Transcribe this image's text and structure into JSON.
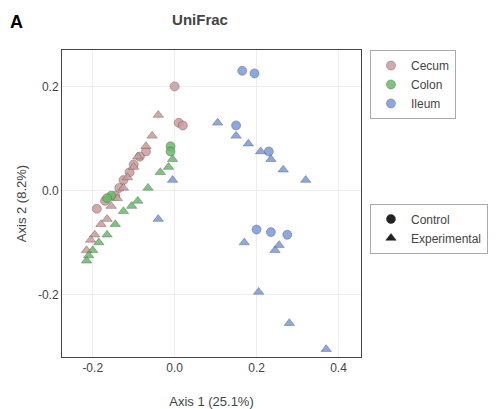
{
  "chart_data": {
    "type": "scatter",
    "title": "UniFrac",
    "xlabel": "Axis 1 (25.1%)",
    "ylabel": "Axis 2 (8.2%)",
    "xlim": [
      -0.275,
      0.455
    ],
    "ylim": [
      -0.32,
      0.27
    ],
    "xticks": [
      -0.2,
      {
        "value": 0.0,
        "label": "0.0"
      },
      0.2,
      0.4
    ],
    "yticks": [
      -0.2,
      {
        "value": 0.0,
        "label": "0.0"
      },
      0.2
    ],
    "grid": true,
    "legend": "right",
    "annotations": [
      {
        "text": "A"
      }
    ],
    "series": [
      {
        "name": "Cecum",
        "color": "#CD9B9B",
        "marker": "circle",
        "x": [
          0.0,
          0.01,
          0.02,
          -0.07,
          -0.085,
          -0.1,
          -0.11,
          -0.125,
          -0.135,
          -0.145,
          -0.17,
          -0.19
        ],
        "values": [
          0.2,
          0.13,
          0.125,
          0.075,
          0.065,
          0.05,
          0.035,
          0.02,
          0.005,
          -0.01,
          -0.02,
          -0.035
        ]
      },
      {
        "name": "Cecum",
        "color": "#CD9B9B",
        "marker": "triangle",
        "x": [
          -0.04,
          -0.055,
          -0.07,
          -0.09,
          -0.1,
          -0.115,
          -0.125,
          -0.14,
          -0.155,
          -0.165,
          -0.18,
          -0.195,
          -0.205,
          -0.215
        ],
        "values": [
          0.145,
          0.105,
          0.085,
          0.065,
          0.045,
          0.025,
          0.005,
          -0.015,
          -0.03,
          -0.055,
          -0.065,
          -0.085,
          -0.095,
          -0.115
        ]
      },
      {
        "name": "Colon",
        "color": "#66BB66",
        "marker": "circle",
        "x": [
          -0.01,
          -0.01,
          -0.155,
          -0.165
        ],
        "values": [
          0.085,
          0.075,
          -0.01,
          -0.015
        ]
      },
      {
        "name": "Colon",
        "color": "#66BB66",
        "marker": "triangle",
        "x": [
          -0.005,
          -0.015,
          -0.035,
          -0.065,
          -0.09,
          -0.105,
          -0.125,
          -0.145,
          -0.165,
          -0.185,
          -0.2,
          -0.21,
          -0.215
        ],
        "values": [
          0.06,
          0.045,
          0.035,
          0.005,
          -0.02,
          -0.03,
          -0.04,
          -0.065,
          -0.085,
          -0.1,
          -0.115,
          -0.125,
          -0.135
        ]
      },
      {
        "name": "Ileum",
        "color": "#7799DD",
        "marker": "circle",
        "x": [
          0.165,
          0.195,
          0.15,
          0.23,
          0.2,
          0.235,
          0.275
        ],
        "values": [
          0.23,
          0.225,
          0.125,
          0.075,
          -0.075,
          -0.08,
          -0.085
        ]
      },
      {
        "name": "Ileum",
        "color": "#7799DD",
        "marker": "triangle",
        "x": [
          0.105,
          0.15,
          0.18,
          0.21,
          0.235,
          0.265,
          0.32,
          -0.005,
          -0.04,
          0.17,
          0.255,
          0.245,
          0.205,
          0.28,
          0.37
        ],
        "values": [
          0.13,
          0.105,
          0.09,
          0.075,
          0.06,
          0.04,
          0.02,
          0.02,
          -0.055,
          -0.1,
          -0.105,
          -0.115,
          -0.195,
          -0.255,
          -0.305
        ]
      }
    ],
    "markers": [
      {
        "name": "Control",
        "marker": "circle",
        "color": "#222222"
      },
      {
        "name": "Experimental",
        "marker": "triangle",
        "color": "#222222"
      }
    ]
  }
}
